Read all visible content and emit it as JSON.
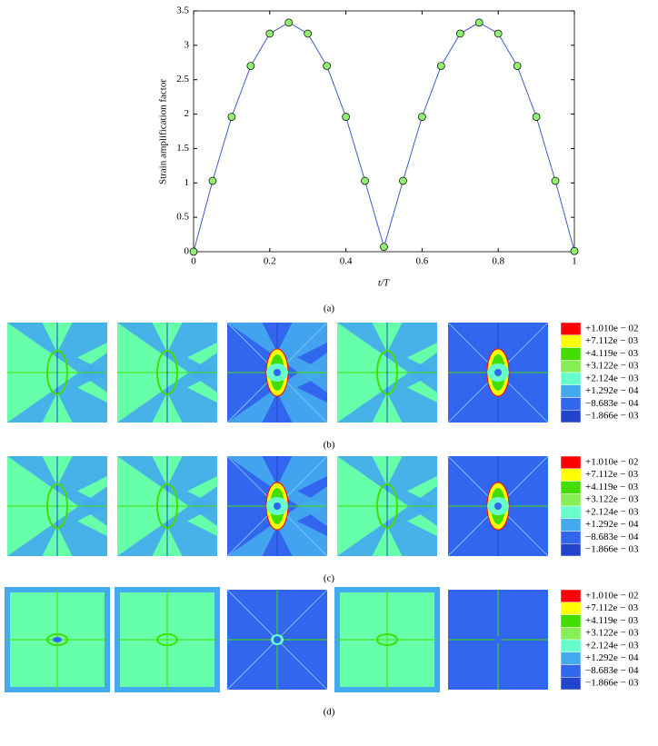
{
  "chart_data": {
    "type": "line",
    "x_label": "t/T",
    "y_label": "Strain amplification factor",
    "x": [
      0,
      0.05,
      0.1,
      0.15,
      0.2,
      0.25,
      0.3,
      0.35,
      0.4,
      0.45,
      0.5,
      0.55,
      0.6,
      0.65,
      0.7,
      0.75,
      0.8,
      0.85,
      0.9,
      0.95,
      1
    ],
    "values": [
      0,
      1.03,
      1.96,
      2.7,
      3.17,
      3.33,
      3.17,
      2.7,
      1.96,
      1.03,
      0.07,
      1.03,
      1.96,
      2.7,
      3.17,
      3.33,
      3.17,
      2.7,
      1.96,
      1.03,
      0.01
    ],
    "color": "#3b5bc8",
    "marker_color": "#90ee70",
    "xlim": [
      0,
      1
    ],
    "xticks": [
      0,
      0.2,
      0.4,
      0.6,
      0.8,
      1
    ],
    "ylim": [
      0,
      3.5
    ],
    "yticks": [
      0,
      0.5,
      1,
      1.5,
      2,
      2.5,
      3,
      3.5
    ]
  },
  "figure": {
    "caption_a": "(a)",
    "rows": [
      {
        "caption": "(b)",
        "colorbar": [
          "+1.010e − 02",
          "+7.112e − 03",
          "+4.119e − 03",
          "+3.122e − 03",
          "+2.124e − 03",
          "+1.292e − 04",
          "−8.683e − 04",
          "−1.866e − 03"
        ]
      },
      {
        "caption": "(c)",
        "colorbar": [
          "+1.010e − 02",
          "+7.112e − 03",
          "+4.119e − 03",
          "+3.122e − 03",
          "+2.124e − 03",
          "+1.292e − 04",
          "−8.683e − 04",
          "−1.866e − 03"
        ]
      },
      {
        "caption": "(d)",
        "colorbar": [
          "+1.010e − 02",
          "+7.112e − 03",
          "+4.119e − 03",
          "+3.122e − 03",
          "+2.124e − 03",
          "+1.292e − 04",
          "−8.683e − 04",
          "−1.866e − 03"
        ]
      }
    ]
  }
}
